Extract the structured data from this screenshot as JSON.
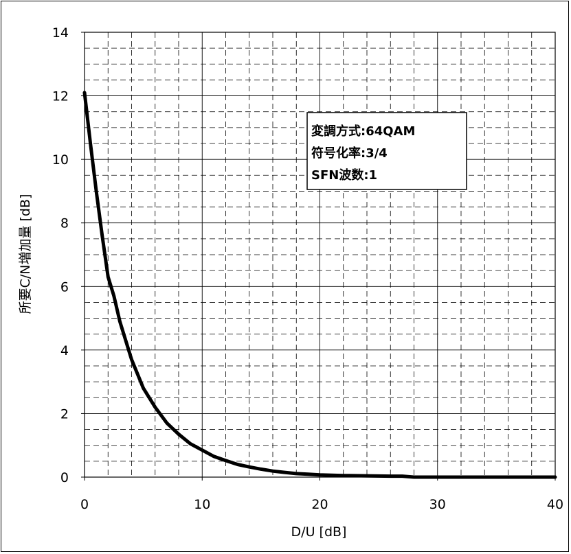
{
  "chart_data": {
    "type": "line",
    "xlabel": "D/U [dB]",
    "ylabel": "所要C/N増加量 [dB]",
    "xlim": [
      0,
      40
    ],
    "ylim": [
      0,
      14
    ],
    "x_ticks": [
      "0",
      "10",
      "20",
      "30",
      "40"
    ],
    "y_ticks": [
      "0",
      "2",
      "4",
      "6",
      "8",
      "10",
      "12",
      "14"
    ],
    "grid": true,
    "legend_box": [
      "変調方式:64QAM",
      "符号化率:3/4",
      "SFN波数:1"
    ],
    "legend_placement": "upper-right",
    "series": [
      {
        "color": "#000000",
        "x": [
          0,
          0.5,
          1,
          1.5,
          2,
          2.5,
          3,
          4,
          5,
          6,
          7,
          8,
          9,
          10,
          11,
          12,
          13,
          14,
          15,
          16,
          17,
          18,
          19,
          20,
          22,
          24,
          26,
          27,
          28,
          30,
          35,
          40
        ],
        "y": [
          12.1,
          10.5,
          9.0,
          7.6,
          6.3,
          5.7,
          4.9,
          3.7,
          2.8,
          2.2,
          1.7,
          1.35,
          1.05,
          0.85,
          0.65,
          0.52,
          0.4,
          0.32,
          0.25,
          0.19,
          0.15,
          0.11,
          0.09,
          0.07,
          0.05,
          0.04,
          0.03,
          0.03,
          0.0,
          0.0,
          0.0,
          0.0
        ]
      }
    ]
  }
}
